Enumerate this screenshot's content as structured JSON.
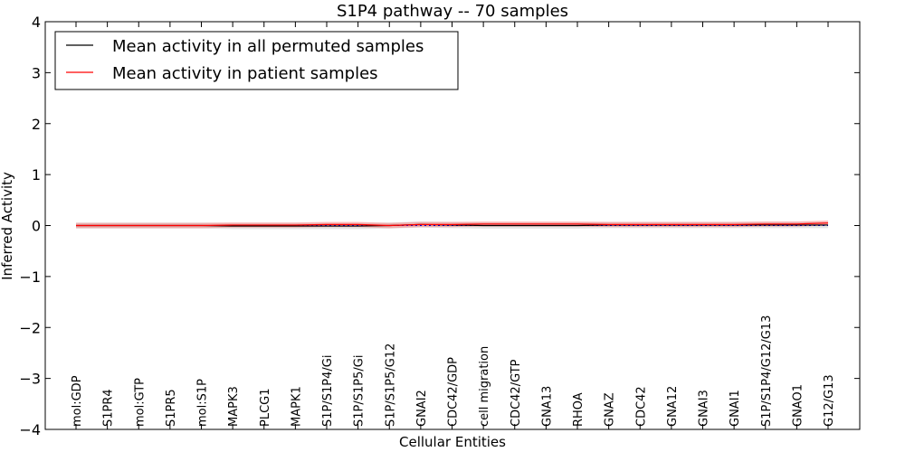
{
  "chart_data": {
    "type": "line",
    "title": "S1P4 pathway -- 70 samples",
    "xlabel": "Cellular Entities",
    "ylabel": "Inferred Activity",
    "ylim": [
      -4,
      4
    ],
    "yticks": [
      4,
      3,
      2,
      1,
      0,
      -1,
      -2,
      -3,
      -4
    ],
    "ytick_labels": [
      "4",
      "3",
      "2",
      "1",
      "0",
      "−1",
      "−2",
      "−3",
      "−4"
    ],
    "categories": [
      "mol:GDP",
      "S1PR4",
      "mol:GTP",
      "S1PR5",
      "mol:S1P",
      "MAPK3",
      "PLCG1",
      "MAPK1",
      "S1P/S1P4/Gi",
      "S1P/S1P5/Gi",
      "S1P/S1P5/G12",
      "GNAI2",
      "CDC42/GDP",
      "cell migration",
      "CDC42/GTP",
      "GNA13",
      "RHOA",
      "GNAZ",
      "CDC42",
      "GNA12",
      "GNAI3",
      "GNAI1",
      "S1P/S1P4/G12/G13",
      "GNAO1",
      "G12/G13"
    ],
    "grid": false,
    "legend_location": "top-left",
    "legend_entries": [
      "Mean activity in all permuted samples",
      "Mean activity in patient samples"
    ],
    "series": [
      {
        "name": "Mean activity in all permuted samples",
        "color": "#000000",
        "values": [
          0.0,
          0.0,
          0.0,
          0.0,
          0.0,
          -0.01,
          -0.01,
          -0.01,
          -0.01,
          -0.01,
          0.0,
          0.02,
          0.01,
          0.0,
          0.0,
          0.0,
          0.0,
          0.01,
          0.01,
          0.01,
          0.01,
          0.01,
          0.01,
          0.01,
          0.01
        ],
        "band": 0.06
      },
      {
        "name": "Mean activity in patient samples",
        "color": "#ff0000",
        "values": [
          0.0,
          0.0,
          0.0,
          0.0,
          0.0,
          0.01,
          0.01,
          0.01,
          0.02,
          0.02,
          0.0,
          0.02,
          0.02,
          0.03,
          0.03,
          0.03,
          0.03,
          0.02,
          0.02,
          0.02,
          0.02,
          0.02,
          0.03,
          0.03,
          0.05
        ],
        "band": 0.05
      }
    ],
    "baseline_color": "#0000ff"
  }
}
